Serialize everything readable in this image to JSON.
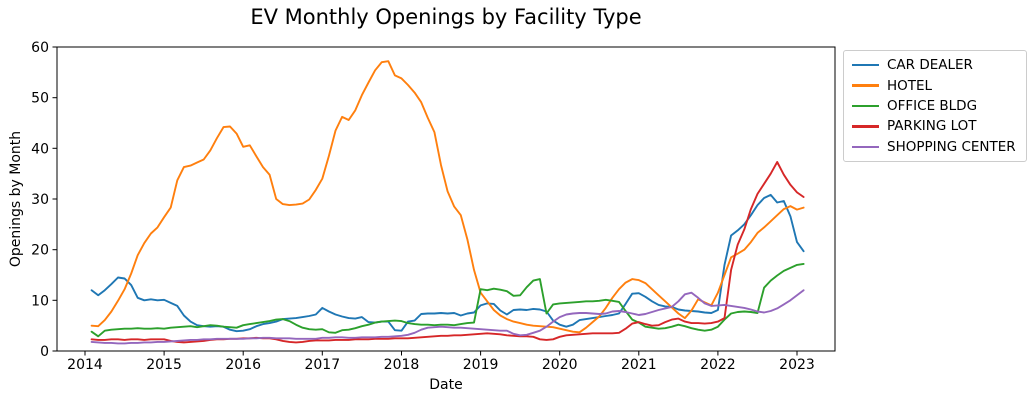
{
  "chart_data": {
    "type": "line",
    "title": "EV Monthly Openings by Facility Type",
    "xlabel": "Date",
    "ylabel": "Openings by Month",
    "xlim": [
      2013.646,
      2023.48
    ],
    "ylim": [
      0,
      60
    ],
    "x_ticks": [
      2014,
      2015,
      2016,
      2017,
      2018,
      2019,
      2020,
      2021,
      2022,
      2023
    ],
    "y_ticks": [
      0,
      10,
      20,
      30,
      40,
      50,
      60
    ],
    "grid": false,
    "legend_position": "outside-upper-right",
    "x_start": 2014.0833,
    "x_step": 0.0833,
    "x_unit": "monthly from 2014-02 to 2023-02",
    "series": [
      {
        "name": "CAR DEALER",
        "color": "#1f77b4",
        "values": [
          12.0,
          11.0,
          12.0,
          13.2,
          14.5,
          14.3,
          13.0,
          10.5,
          10.0,
          10.2,
          10.0,
          10.1,
          9.5,
          8.9,
          7.0,
          5.8,
          5.1,
          4.9,
          4.8,
          4.9,
          4.8,
          4.2,
          3.9,
          4.0,
          4.3,
          4.9,
          5.3,
          5.5,
          5.8,
          6.3,
          6.4,
          6.5,
          6.7,
          6.9,
          7.2,
          8.5,
          7.8,
          7.2,
          6.8,
          6.5,
          6.4,
          6.7,
          5.7,
          5.6,
          5.8,
          5.8,
          4.1,
          4.0,
          5.8,
          6.0,
          7.3,
          7.4,
          7.4,
          7.5,
          7.4,
          7.5,
          7.0,
          7.4,
          7.6,
          9.0,
          9.4,
          9.3,
          8.0,
          7.2,
          8.1,
          8.2,
          8.1,
          8.3,
          8.2,
          7.8,
          6.0,
          5.2,
          4.8,
          5.2,
          6.1,
          6.3,
          6.5,
          6.7,
          6.9,
          7.1,
          7.4,
          9.3,
          11.3,
          11.4,
          10.7,
          9.8,
          9.1,
          8.8,
          8.7,
          8.2,
          8.0,
          7.9,
          7.8,
          7.6,
          7.5,
          8.1,
          17.0,
          22.8,
          23.8,
          25.0,
          26.8,
          28.8,
          30.2,
          30.8,
          29.3,
          29.6,
          26.6,
          21.5,
          19.7
        ]
      },
      {
        "name": "HOTEL",
        "color": "#ff7f0e",
        "values": [
          5.0,
          4.9,
          6.1,
          7.8,
          9.9,
          12.2,
          15.3,
          18.9,
          21.3,
          23.2,
          24.4,
          26.4,
          28.3,
          33.7,
          36.3,
          36.6,
          37.2,
          37.8,
          39.6,
          42.0,
          44.2,
          44.3,
          42.9,
          40.3,
          40.6,
          38.4,
          36.3,
          34.8,
          30.0,
          29.0,
          28.8,
          28.9,
          29.1,
          29.9,
          31.8,
          34.0,
          38.5,
          43.5,
          46.2,
          45.6,
          47.5,
          50.5,
          53.0,
          55.4,
          57.0,
          57.2,
          54.4,
          53.8,
          52.5,
          51.0,
          49.1,
          46.0,
          43.2,
          36.7,
          31.5,
          28.5,
          26.8,
          22.0,
          16.0,
          11.5,
          9.8,
          8.1,
          7.0,
          6.3,
          5.8,
          5.5,
          5.2,
          5.0,
          4.9,
          4.8,
          4.7,
          4.4,
          4.1,
          3.8,
          3.7,
          4.6,
          5.7,
          6.8,
          8.5,
          10.5,
          12.2,
          13.5,
          14.2,
          14.0,
          13.4,
          12.2,
          11.0,
          9.8,
          8.6,
          7.4,
          6.5,
          8.0,
          10.2,
          9.6,
          9.0,
          11.5,
          15.0,
          18.5,
          19.2,
          20.0,
          21.5,
          23.3,
          24.4,
          25.6,
          26.8,
          28.0,
          28.6,
          27.9,
          28.3
        ]
      },
      {
        "name": "OFFICE BLDG",
        "color": "#2ca02c",
        "values": [
          3.8,
          2.9,
          4.0,
          4.2,
          4.3,
          4.4,
          4.4,
          4.5,
          4.4,
          4.4,
          4.5,
          4.4,
          4.6,
          4.7,
          4.8,
          4.9,
          4.7,
          4.9,
          5.1,
          5.0,
          4.8,
          4.7,
          4.6,
          5.1,
          5.3,
          5.5,
          5.7,
          5.9,
          6.2,
          6.3,
          5.9,
          5.2,
          4.6,
          4.3,
          4.2,
          4.3,
          3.7,
          3.6,
          4.1,
          4.2,
          4.5,
          4.9,
          5.2,
          5.6,
          5.8,
          5.9,
          6.0,
          5.9,
          5.5,
          5.3,
          5.2,
          5.2,
          5.1,
          5.2,
          5.2,
          5.1,
          5.3,
          5.5,
          5.6,
          12.2,
          12.0,
          12.3,
          12.1,
          11.8,
          10.9,
          11.0,
          12.6,
          13.9,
          14.2,
          7.4,
          9.2,
          9.4,
          9.5,
          9.6,
          9.7,
          9.8,
          9.8,
          9.9,
          10.1,
          9.9,
          9.7,
          7.9,
          6.2,
          5.6,
          4.8,
          4.6,
          4.4,
          4.5,
          4.8,
          5.2,
          4.9,
          4.5,
          4.2,
          4.0,
          4.2,
          4.8,
          6.2,
          7.4,
          7.7,
          7.8,
          7.7,
          7.5,
          12.5,
          13.9,
          14.9,
          15.8,
          16.4,
          17.0,
          17.2
        ]
      },
      {
        "name": "PARKING LOT",
        "color": "#d62728",
        "values": [
          2.3,
          2.2,
          2.2,
          2.3,
          2.3,
          2.2,
          2.3,
          2.3,
          2.2,
          2.3,
          2.3,
          2.3,
          2.0,
          1.8,
          1.7,
          1.8,
          1.9,
          2.0,
          2.2,
          2.3,
          2.3,
          2.4,
          2.4,
          2.5,
          2.5,
          2.6,
          2.5,
          2.5,
          2.3,
          2.0,
          1.8,
          1.7,
          1.8,
          2.0,
          2.1,
          2.1,
          2.1,
          2.2,
          2.2,
          2.2,
          2.3,
          2.3,
          2.3,
          2.4,
          2.4,
          2.4,
          2.5,
          2.5,
          2.5,
          2.6,
          2.7,
          2.8,
          2.9,
          3.0,
          3.0,
          3.1,
          3.1,
          3.2,
          3.3,
          3.4,
          3.5,
          3.4,
          3.3,
          3.1,
          3.0,
          2.9,
          2.9,
          2.8,
          2.3,
          2.2,
          2.3,
          2.8,
          3.1,
          3.2,
          3.3,
          3.4,
          3.5,
          3.5,
          3.5,
          3.5,
          3.6,
          4.4,
          5.4,
          5.7,
          5.3,
          5.0,
          5.1,
          5.7,
          6.2,
          6.4,
          5.8,
          5.5,
          5.5,
          5.4,
          5.5,
          5.8,
          6.5,
          16.0,
          21.0,
          24.0,
          28.0,
          31.0,
          33.0,
          35.0,
          37.3,
          34.8,
          32.8,
          31.3,
          30.4
        ]
      },
      {
        "name": "SHOPPING CENTER",
        "color": "#9467bd",
        "values": [
          1.8,
          1.7,
          1.6,
          1.6,
          1.5,
          1.5,
          1.6,
          1.6,
          1.7,
          1.7,
          1.8,
          1.8,
          1.9,
          2.0,
          2.1,
          2.2,
          2.2,
          2.3,
          2.3,
          2.4,
          2.4,
          2.4,
          2.4,
          2.4,
          2.5,
          2.5,
          2.6,
          2.6,
          2.5,
          2.5,
          2.5,
          2.4,
          2.4,
          2.4,
          2.4,
          2.6,
          2.6,
          2.7,
          2.7,
          2.6,
          2.6,
          2.7,
          2.7,
          2.7,
          2.8,
          2.8,
          2.9,
          3.0,
          3.2,
          3.6,
          4.2,
          4.6,
          4.7,
          4.8,
          4.7,
          4.6,
          4.6,
          4.5,
          4.4,
          4.3,
          4.2,
          4.1,
          4.0,
          4.0,
          3.4,
          3.1,
          3.2,
          3.6,
          4.0,
          4.8,
          5.8,
          6.7,
          7.2,
          7.4,
          7.5,
          7.5,
          7.4,
          7.3,
          7.4,
          7.8,
          7.9,
          7.7,
          7.4,
          7.1,
          7.3,
          7.7,
          8.1,
          8.4,
          8.7,
          9.8,
          11.2,
          11.5,
          10.5,
          9.4,
          8.9,
          9.0,
          9.1,
          8.9,
          8.7,
          8.5,
          8.2,
          7.8,
          7.6,
          7.9,
          8.4,
          9.2,
          10.0,
          11.0,
          12.0
        ]
      }
    ]
  }
}
